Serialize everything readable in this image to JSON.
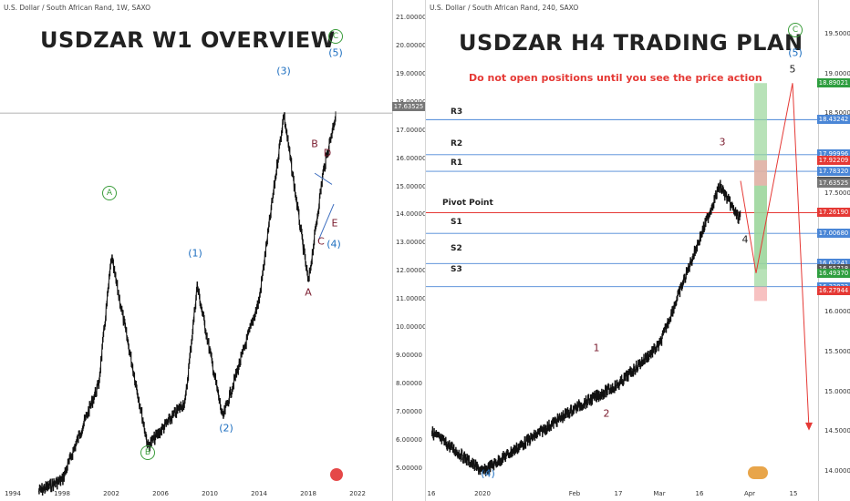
{
  "left": {
    "symbol": "U.S. Dollar / South African Rand, 1W, SAXO",
    "title": "USDZAR W1 OVERVIEW",
    "last_price": "17.63525",
    "y_ticks": [
      "21.00000",
      "20.00000",
      "19.00000",
      "18.00000",
      "17.00000",
      "16.00000",
      "15.00000",
      "14.00000",
      "13.00000",
      "12.00000",
      "11.00000",
      "10.00000",
      "9.00000",
      "8.00000",
      "7.00000",
      "6.00000",
      "5.00000"
    ],
    "x_ticks": [
      "1994",
      "1998",
      "2002",
      "2006",
      "2010",
      "2014",
      "2018",
      "2022"
    ],
    "waves": {
      "A_circle": "A",
      "B_circle": "B",
      "C_circle": "C",
      "w1": "(1)",
      "w2": "(2)",
      "w3": "(3)",
      "w4": "(4)",
      "w5": "(5)",
      "a": "A",
      "b": "B",
      "c": "C",
      "d": "D",
      "e": "E"
    }
  },
  "right": {
    "symbol": "U.S. Dollar / South African Rand, 240, SAXO",
    "title": "USDZAR H4 TRADING PLAN",
    "warning": "Do not open positions until you see the price action",
    "levels": {
      "r3": "R3",
      "r2": "R2",
      "r1": "R1",
      "pivot": "Pivot Point",
      "s1": "S1",
      "s2": "S2",
      "s3": "S3"
    },
    "y_ticks": [
      "19.50000",
      "19.00000",
      "18.50000",
      "18.00000",
      "17.50000",
      "17.00000",
      "16.50000",
      "16.00000",
      "15.50000",
      "15.00000",
      "14.50000",
      "14.00000"
    ],
    "price_tags": [
      {
        "v": "18.89021",
        "c": "#2e9e3f"
      },
      {
        "v": "18.43242",
        "c": "#4a86d6"
      },
      {
        "v": "17.99996",
        "c": "#4a86d6"
      },
      {
        "v": "17.92209",
        "c": "#e53935"
      },
      {
        "v": "17.78320",
        "c": "#4a86d6"
      },
      {
        "v": "17.66021",
        "c": "#555555"
      },
      {
        "v": "17.63525",
        "c": "#777777"
      },
      {
        "v": "17.26190",
        "c": "#e53935"
      },
      {
        "v": "17.00680",
        "c": "#4a86d6"
      },
      {
        "v": "16.62241",
        "c": "#4a86d6"
      },
      {
        "v": "16.55718",
        "c": "#555555"
      },
      {
        "v": "16.49370",
        "c": "#2e9e3f"
      },
      {
        "v": "16.33022",
        "c": "#4a86d6"
      },
      {
        "v": "16.27944",
        "c": "#e53935"
      }
    ],
    "x_ticks": [
      "16",
      "2020",
      "Feb",
      "17",
      "Mar",
      "16",
      "Apr",
      "15"
    ],
    "waves": {
      "w1": "1",
      "w2": "2",
      "w3": "3",
      "w4": "4",
      "w5": "5",
      "w4_paren": "(4)",
      "w5_paren": "(5)",
      "c_circle": "C"
    }
  },
  "chart_data": [
    {
      "type": "line",
      "title": "USDZAR W1 OVERVIEW",
      "x": [
        "1996",
        "1998",
        "2001",
        "2002",
        "2005",
        "2008",
        "2009",
        "2011",
        "2014",
        "2016",
        "2018",
        "2019",
        "2020"
      ],
      "series": [
        {
          "values": [
            4.2,
            4.6,
            8.0,
            12.5,
            5.8,
            7.4,
            11.5,
            6.8,
            11.0,
            17.6,
            11.6,
            15.5,
            17.6
          ]
        }
      ],
      "ylim": [
        4.5,
        21.2
      ]
    },
    {
      "type": "line",
      "title": "USDZAR H4 TRADING PLAN",
      "x": [
        "2019-12-16",
        "2020-01-02",
        "2020-02-03",
        "2020-02-17",
        "2020-03-02",
        "2020-03-16",
        "2020-04-01",
        "2020-04-15"
      ],
      "series": [
        {
          "values": [
            14.5,
            14.0,
            14.8,
            15.1,
            15.4,
            17.0,
            17.7,
            18.89
          ]
        }
      ],
      "levels": {
        "R3": 18.43,
        "R2": 17.99,
        "R1": 17.78,
        "Pivot Point": 17.26,
        "S1": 17.0,
        "S2": 16.62,
        "S3": 16.33
      },
      "ylim": [
        13.8,
        19.8
      ]
    }
  ]
}
